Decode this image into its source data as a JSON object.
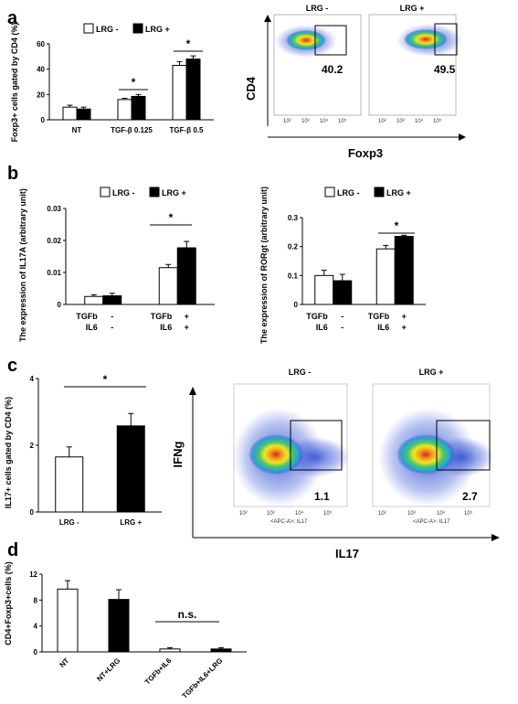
{
  "panels": [
    "a",
    "b",
    "c",
    "d"
  ],
  "legend": {
    "open": "LRG -",
    "closed": "LRG +"
  },
  "panel_a": {
    "flow": {
      "titles": [
        "LRG -",
        "LRG +"
      ],
      "ylabel": "CD4",
      "xlabel": "Foxp3",
      "gate_values": [
        "40.2",
        "49.5"
      ],
      "ticks": [
        "10²",
        "10³",
        "10⁴",
        "10⁵"
      ]
    }
  },
  "panel_b": {},
  "panel_c": {
    "flow": {
      "titles": [
        "LRG -",
        "LRG +"
      ],
      "ylabel": "IFNg",
      "xlabel": "IL17",
      "axis_caption": "<APC-A>: IL17",
      "gate_values": [
        "1.1",
        "2.7"
      ],
      "ticks": [
        "10²",
        "10³",
        "10⁴",
        "10⁵"
      ]
    }
  },
  "chart_data": [
    {
      "id": "a-bar",
      "type": "bar",
      "ylabel": "Foxp3+ cells gated by CD4 (%)",
      "categories": [
        "NT",
        "TGF-β 0.125",
        "TGF-β 0.5"
      ],
      "series": [
        {
          "name": "LRG -",
          "values": [
            10,
            16,
            43
          ],
          "errors": [
            1.5,
            1,
            3
          ]
        },
        {
          "name": "LRG +",
          "values": [
            8.5,
            18.5,
            48
          ],
          "errors": [
            1.5,
            1.5,
            2.5
          ]
        }
      ],
      "ylim": [
        0,
        60
      ],
      "yticks": [
        "0",
        "20",
        "40",
        "60"
      ],
      "significance": [
        "*",
        "*"
      ]
    },
    {
      "id": "b-il17a",
      "type": "bar",
      "ylabel": "The expression of IL17A (arbitrary unit)",
      "categories": [
        "TGFb - / IL6 -",
        "TGFb + / IL6 +"
      ],
      "xrows": [
        {
          "label": "TGFb",
          "values": [
            "-",
            "+"
          ]
        },
        {
          "label": "IL6",
          "values": [
            "-",
            "+"
          ]
        }
      ],
      "series": [
        {
          "name": "LRG -",
          "values": [
            0.0025,
            0.0115
          ],
          "errors": [
            0.0005,
            0.001
          ]
        },
        {
          "name": "LRG +",
          "values": [
            0.0027,
            0.0177
          ],
          "errors": [
            0.0008,
            0.002
          ]
        }
      ],
      "ylim": [
        0,
        0.03
      ],
      "yticks": [
        "0",
        "0.01",
        "0.02",
        "0.03"
      ],
      "significance": [
        "*"
      ]
    },
    {
      "id": "b-rorgt",
      "type": "bar",
      "ylabel": "The expression of RORgt (arbitrary unit)",
      "categories": [
        "TGFb - / IL6 -",
        "TGFb + / IL6 +"
      ],
      "xrows": [
        {
          "label": "TGFb",
          "values": [
            "-",
            "+"
          ]
        },
        {
          "label": "IL6",
          "values": [
            "-",
            "+"
          ]
        }
      ],
      "series": [
        {
          "name": "LRG -",
          "values": [
            0.1,
            0.192
          ],
          "errors": [
            0.018,
            0.012
          ]
        },
        {
          "name": "LRG +",
          "values": [
            0.082,
            0.235
          ],
          "errors": [
            0.022,
            0.004
          ]
        }
      ],
      "ylim": [
        0,
        0.3
      ],
      "yticks": [
        "0",
        "0.1",
        "0.2",
        "0.3"
      ],
      "significance": [
        "*"
      ]
    },
    {
      "id": "c-bar",
      "type": "bar",
      "ylabel": "IL17+ cells gated by CD4 (%)",
      "categories": [
        "LRG -",
        "LRG +"
      ],
      "values": [
        1.65,
        2.58
      ],
      "errors": [
        0.3,
        0.37
      ],
      "ylim": [
        0,
        4
      ],
      "yticks": [
        "0",
        "2",
        "4"
      ],
      "significance": [
        "*"
      ]
    },
    {
      "id": "d-bar",
      "type": "bar",
      "ylabel": "CD4+Foxp3+cells (%)",
      "categories": [
        "NT",
        "NT+LRG",
        "TGFb+IL6",
        "TGFb+IL6+LRG"
      ],
      "values": [
        9.7,
        8.1,
        0.45,
        0.45
      ],
      "errors": [
        1.3,
        1.5,
        0.2,
        0.2
      ],
      "ylim": [
        0,
        12
      ],
      "yticks": [
        "0",
        "4",
        "8",
        "12"
      ],
      "significance": [
        "n.s."
      ]
    }
  ]
}
